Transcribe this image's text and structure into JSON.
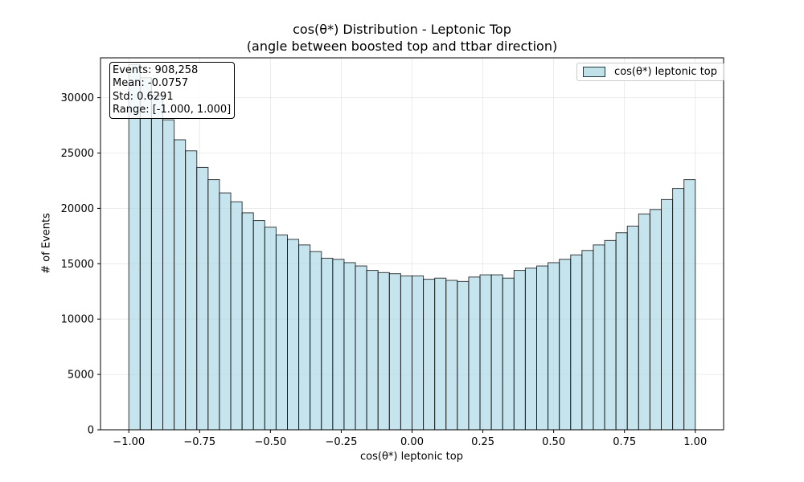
{
  "chart_data": {
    "type": "bar",
    "title": "cos(θ*) Distribution - Leptonic Top",
    "subtitle": "(angle between boosted top and ttbar direction)",
    "xlabel": "cos(θ*) leptonic top",
    "ylabel": "# of Events",
    "xlim": [
      -1.1,
      1.1
    ],
    "ylim": [
      0,
      33600
    ],
    "xticks": [
      -1.0,
      -0.75,
      -0.5,
      -0.25,
      0.0,
      0.25,
      0.5,
      0.75,
      1.0
    ],
    "xtick_labels": [
      "−1.00",
      "−0.75",
      "−0.50",
      "−0.25",
      "0.00",
      "0.25",
      "0.50",
      "0.75",
      "1.00"
    ],
    "yticks": [
      0,
      5000,
      10000,
      15000,
      20000,
      25000,
      30000
    ],
    "ytick_labels": [
      "0",
      "5000",
      "10000",
      "15000",
      "20000",
      "25000",
      "30000"
    ],
    "grid": true,
    "legend_position": "upper right",
    "bin_edges": [
      -1.0,
      -0.96,
      -0.92,
      -0.88,
      -0.84,
      -0.8,
      -0.76,
      -0.72,
      -0.68,
      -0.64,
      -0.6,
      -0.56,
      -0.52,
      -0.48,
      -0.44,
      -0.4,
      -0.36,
      -0.32,
      -0.28,
      -0.24,
      -0.2,
      -0.16,
      -0.12,
      -0.08,
      -0.04,
      0.0,
      0.04,
      0.08,
      0.12,
      0.16,
      0.2,
      0.24,
      0.28,
      0.32,
      0.36,
      0.4,
      0.44,
      0.48,
      0.52,
      0.56,
      0.6,
      0.64,
      0.68,
      0.72,
      0.76,
      0.8,
      0.84,
      0.88,
      0.92,
      0.96,
      1.0
    ],
    "series": [
      {
        "name": "cos(θ*) leptonic top",
        "color": "#add8e6",
        "edgecolor": "#000000",
        "alpha": 0.7,
        "values": [
          33000,
          31800,
          30200,
          28000,
          26200,
          25200,
          23700,
          22600,
          21400,
          20600,
          19600,
          18900,
          18300,
          17600,
          17200,
          16700,
          16100,
          15500,
          15400,
          15100,
          14800,
          14400,
          14200,
          14100,
          13900,
          13900,
          13600,
          13700,
          13500,
          13400,
          13800,
          14000,
          14000,
          13700,
          14400,
          14600,
          14800,
          15100,
          15400,
          15800,
          16200,
          16700,
          17100,
          17800,
          18400,
          19500,
          19900,
          20800,
          21800,
          22600
        ]
      }
    ],
    "annotation": {
      "lines": [
        "Events: 908,258",
        "Mean: -0.0757",
        "Std: 0.6291",
        "Range: [-1.000, 1.000]"
      ],
      "position": "top-left"
    }
  }
}
